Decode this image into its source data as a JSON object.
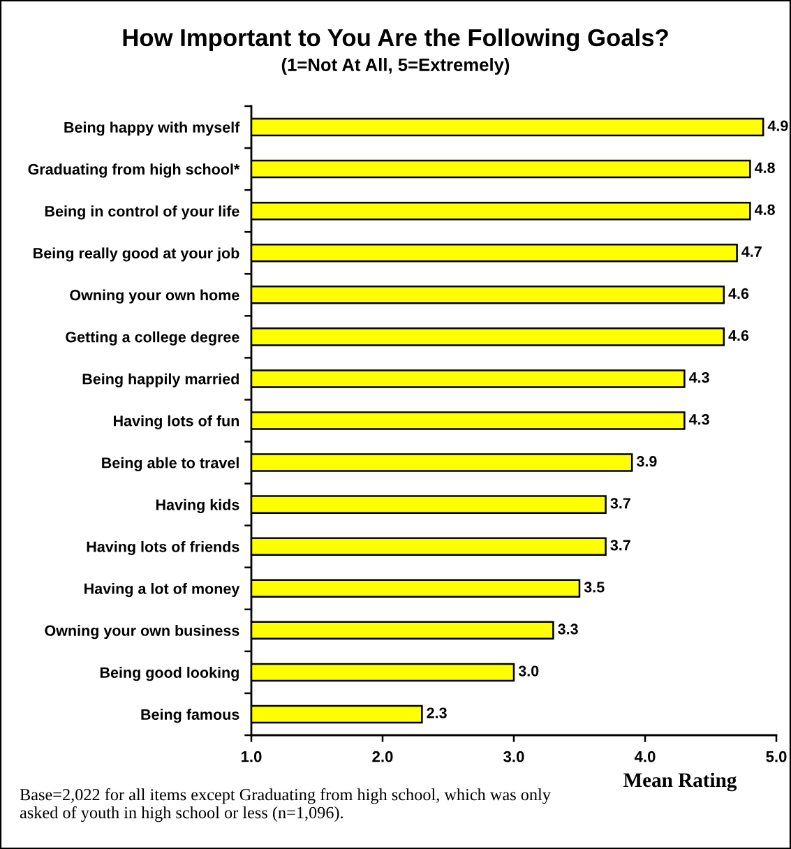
{
  "chart_data": {
    "type": "bar",
    "orientation": "horizontal",
    "title": "How Important to You Are the Following Goals?",
    "subtitle": "(1=Not At All, 5=Extremely)",
    "xlabel": "Mean Rating",
    "categories": [
      "Being happy with myself",
      "Graduating from high school*",
      "Being in control of your life",
      "Being really good at your job",
      "Owning your own home",
      "Getting a college degree",
      "Being happily married",
      "Having lots of fun",
      "Being able to travel",
      "Having kids",
      "Having lots of friends",
      "Having a lot of money",
      "Owning your own business",
      "Being good looking",
      "Being famous"
    ],
    "values": [
      4.9,
      4.8,
      4.8,
      4.7,
      4.6,
      4.6,
      4.3,
      4.3,
      3.9,
      3.7,
      3.7,
      3.5,
      3.3,
      3.0,
      2.3
    ],
    "value_labels": [
      "4.9",
      "4.8",
      "4.8",
      "4.7",
      "4.6",
      "4.6",
      "4.3",
      "4.3",
      "3.9",
      "3.7",
      "3.7",
      "3.5",
      "3.3",
      "3.0",
      "2.3"
    ],
    "color": "#ffff00",
    "xlim": [
      1,
      5
    ],
    "xticks": [
      {
        "value": 1,
        "label": "1.0"
      },
      {
        "value": 2,
        "label": "2.0"
      },
      {
        "value": 3,
        "label": "3.0"
      },
      {
        "value": 4,
        "label": "4.0"
      },
      {
        "value": 5,
        "label": "5.0"
      }
    ],
    "grid": false,
    "legend": false,
    "annotations": [
      "Base=2,022 for all items except Graduating from high school, which was only asked of youth in high school or less (n=1,096)."
    ]
  }
}
